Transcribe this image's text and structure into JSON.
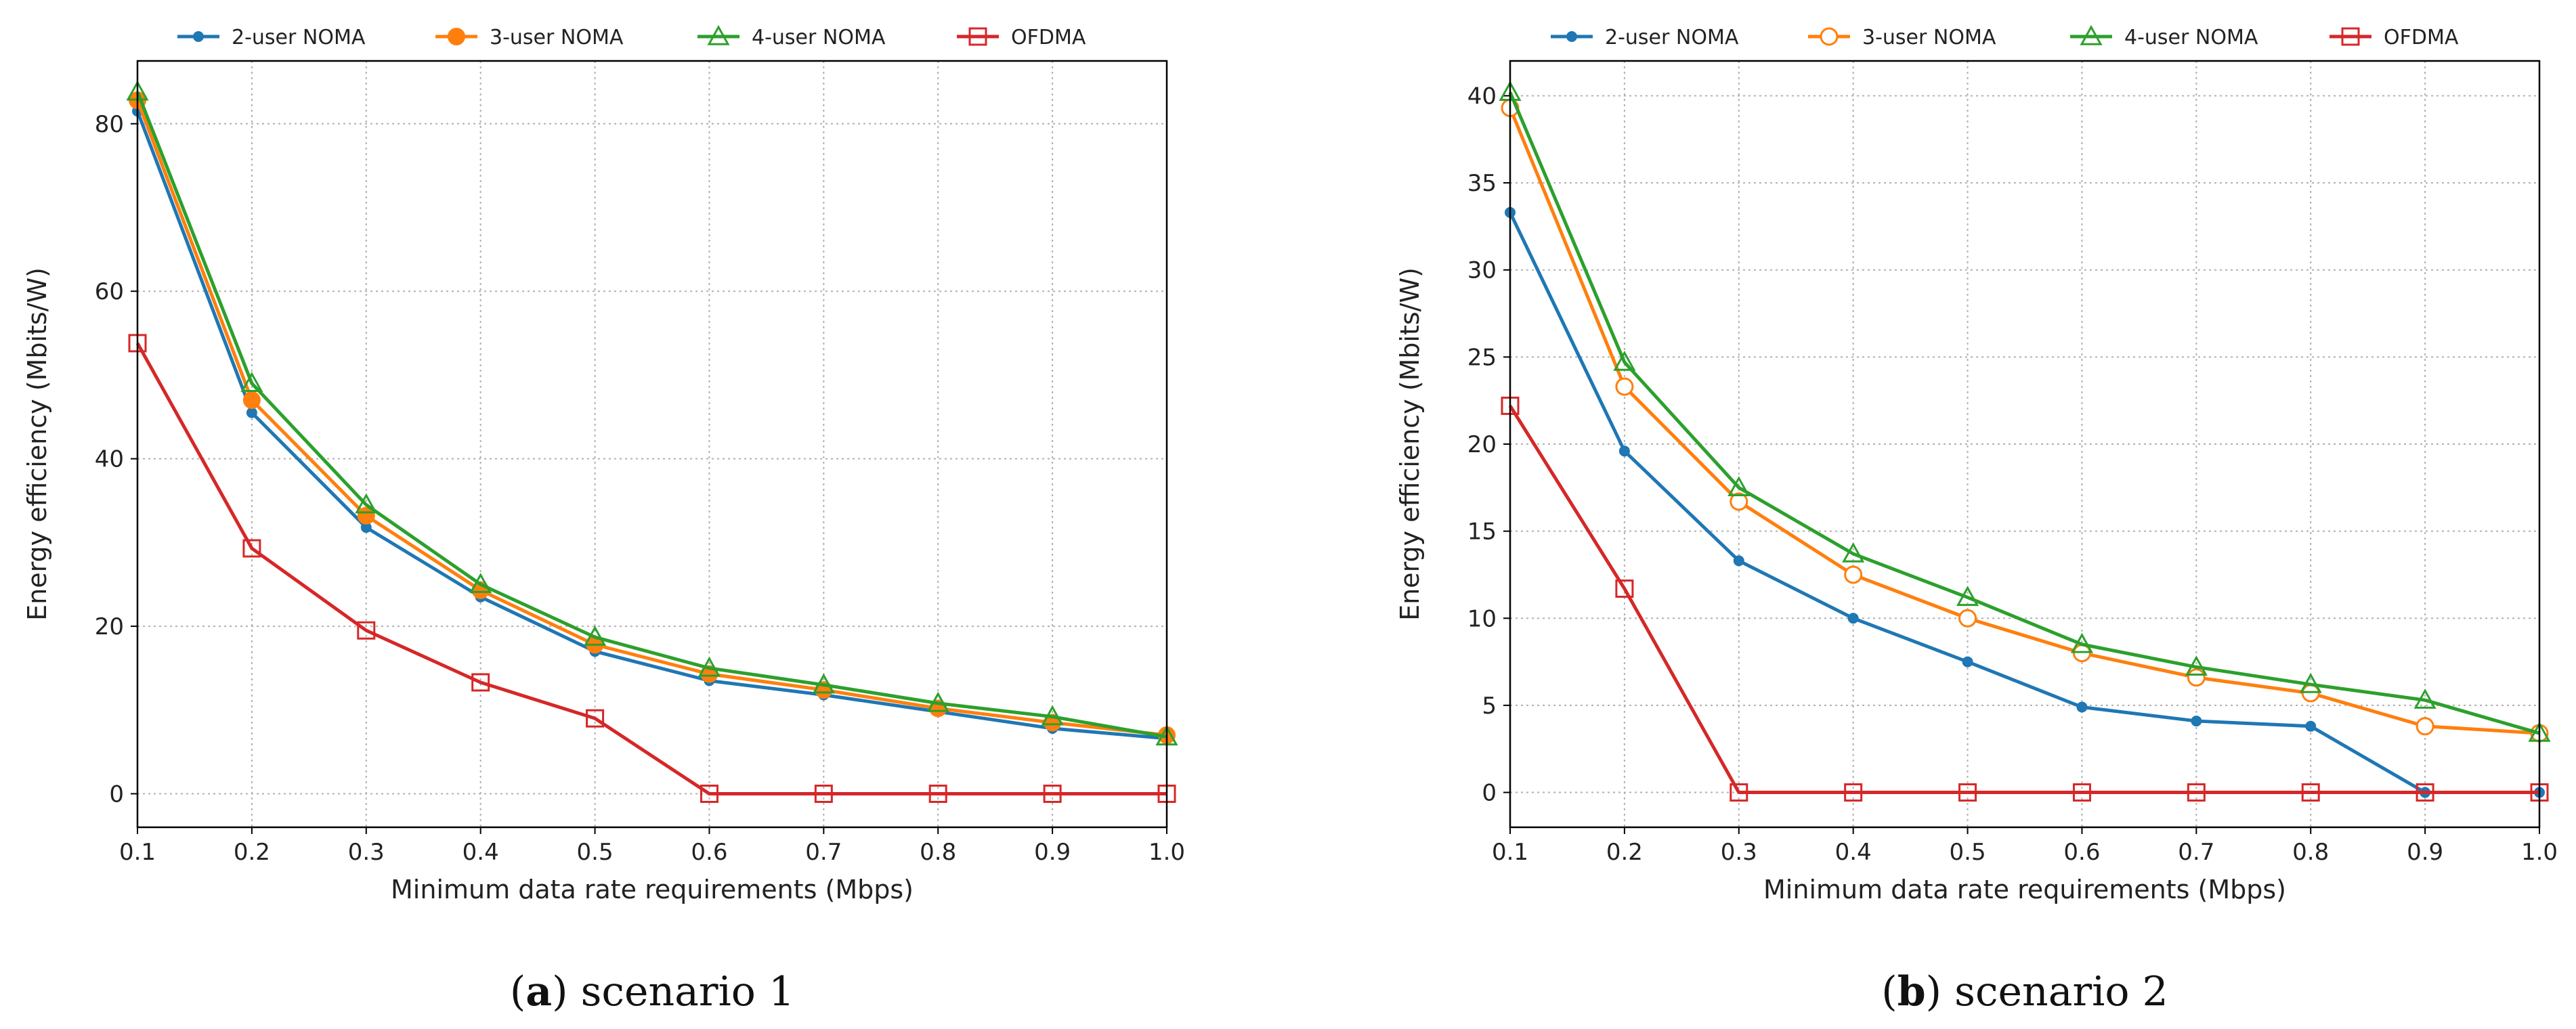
{
  "colors": {
    "2user": "#1f77b4",
    "3user": "#ff7f0e",
    "4user": "#2ca02c",
    "ofdma": "#d62728"
  },
  "chart_data": [
    {
      "type": "line",
      "caption_letter": "a",
      "caption_text": " scenario 1",
      "xlabel": "Minimum data rate requirements (Mbps)",
      "ylabel": "Energy efficiency (Mbits/W)",
      "xlim": [
        0.1,
        1.0
      ],
      "ylim": [
        -4,
        87.5
      ],
      "xticks": [
        "0.1",
        "0.2",
        "0.3",
        "0.4",
        "0.5",
        "0.6",
        "0.7",
        "0.8",
        "0.9",
        "1.0"
      ],
      "yticks": [
        0,
        20,
        40,
        60,
        80
      ],
      "grid": true,
      "legend_position": "top",
      "x": [
        0.1,
        0.2,
        0.3,
        0.4,
        0.5,
        0.6,
        0.7,
        0.8,
        0.9,
        1.0
      ],
      "series": [
        {
          "name": "2-user NOMA",
          "color_key": "2user",
          "marker": "dot",
          "values": [
            81.5,
            45.5,
            31.8,
            23.5,
            17.0,
            13.5,
            11.8,
            9.8,
            7.8,
            6.6
          ]
        },
        {
          "name": "3-user NOMA",
          "color_key": "3user",
          "marker": "filled-circle",
          "values": [
            82.8,
            47.0,
            33.2,
            24.3,
            17.8,
            14.3,
            12.4,
            10.2,
            8.5,
            7.0
          ]
        },
        {
          "name": "4-user NOMA",
          "color_key": "4user",
          "marker": "triangle",
          "values": [
            83.8,
            49.0,
            34.5,
            25.0,
            18.7,
            15.0,
            13.0,
            10.8,
            9.2,
            6.8
          ]
        },
        {
          "name": "OFDMA",
          "color_key": "ofdma",
          "marker": "square",
          "values": [
            53.8,
            29.3,
            19.5,
            13.3,
            9.0,
            0.0,
            0.0,
            0.0,
            0.0,
            0.0
          ]
        }
      ]
    },
    {
      "type": "line",
      "caption_letter": "b",
      "caption_text": " scenario 2",
      "xlabel": "Minimum data rate requirements (Mbps)",
      "ylabel": "Energy efficiency (Mbits/W)",
      "xlim": [
        0.1,
        1.0
      ],
      "ylim": [
        -2,
        42
      ],
      "xticks": [
        "0.1",
        "0.2",
        "0.3",
        "0.4",
        "0.5",
        "0.6",
        "0.7",
        "0.8",
        "0.9",
        "1.0"
      ],
      "yticks": [
        0,
        5,
        10,
        15,
        20,
        25,
        30,
        35,
        40
      ],
      "grid": true,
      "legend_position": "top",
      "x": [
        0.1,
        0.2,
        0.3,
        0.4,
        0.5,
        0.6,
        0.7,
        0.8,
        0.9,
        1.0
      ],
      "series": [
        {
          "name": "2-user NOMA",
          "color_key": "2user",
          "marker": "dot",
          "values": [
            33.3,
            19.6,
            13.3,
            10.0,
            7.5,
            4.9,
            4.1,
            3.8,
            0.0,
            0.0
          ]
        },
        {
          "name": "3-user NOMA",
          "color_key": "3user",
          "marker": "open-circle",
          "values": [
            39.3,
            23.3,
            16.7,
            12.5,
            10.0,
            8.0,
            6.6,
            5.7,
            3.8,
            3.4
          ]
        },
        {
          "name": "4-user NOMA",
          "color_key": "4user",
          "marker": "triangle",
          "values": [
            40.2,
            24.7,
            17.5,
            13.7,
            11.2,
            8.5,
            7.2,
            6.2,
            5.3,
            3.4
          ]
        },
        {
          "name": "OFDMA",
          "color_key": "ofdma",
          "marker": "square",
          "values": [
            22.2,
            11.7,
            0.0,
            0.0,
            0.0,
            0.0,
            0.0,
            0.0,
            0.0,
            0.0
          ]
        }
      ]
    }
  ]
}
